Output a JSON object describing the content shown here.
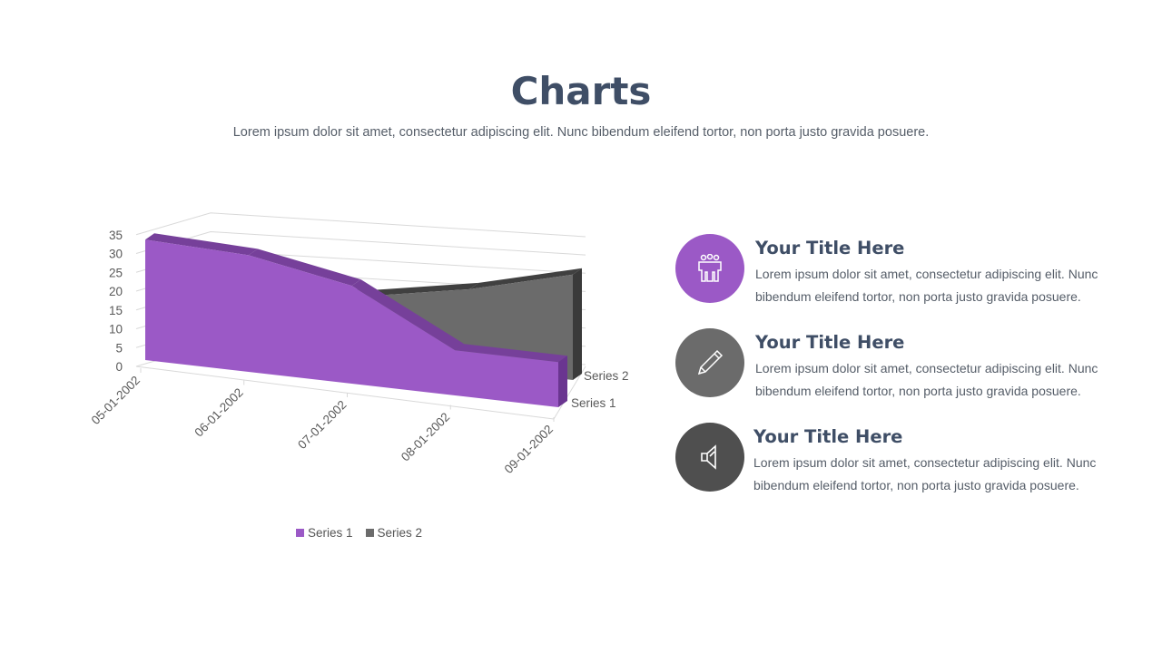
{
  "header": {
    "title": "Charts",
    "subtitle": "Lorem ipsum dolor sit amet, consectetur adipiscing elit. Nunc bibendum eleifend tortor, non porta justo gravida posuere."
  },
  "chart_data": {
    "type": "area",
    "style": "3d-area",
    "categories": [
      "05-01-2002",
      "06-01-2002",
      "07-01-2002",
      "08-01-2002",
      "09-01-2002"
    ],
    "series": [
      {
        "name": "Series 1",
        "values": [
          32,
          31,
          26,
          12,
          12
        ],
        "color": "#9b59c6"
      },
      {
        "name": "Series 2",
        "values": [
          14,
          14,
          16,
          21,
          28
        ],
        "color": "#6b6b6b"
      }
    ],
    "yticks": [
      "0",
      "5",
      "10",
      "15",
      "20",
      "25",
      "30",
      "35"
    ],
    "ylim": [
      0,
      35
    ],
    "depth_labels": [
      "Series 1",
      "Series 2"
    ],
    "grid": true,
    "legend": "bottom"
  },
  "items": [
    {
      "title": "Your Title Here",
      "text": "Lorem ipsum dolor sit amet, consectetur adipiscing elit. Nunc bibendum eleifend tortor, non porta justo gravida posuere.",
      "icon": "team-icon",
      "color": "#9b59c6"
    },
    {
      "title": "Your Title Here",
      "text": "Lorem ipsum dolor sit amet, consectetur adipiscing elit. Nunc bibendum eleifend tortor, non porta justo gravida posuere.",
      "icon": "pencil-icon",
      "color": "#6b6b6b"
    },
    {
      "title": "Your Title Here",
      "text": "Lorem ipsum dolor sit amet, consectetur adipiscing elit. Nunc bibendum eleifend tortor, non porta justo gravida posuere.",
      "icon": "speaker-icon",
      "color": "#4f4f4f"
    }
  ]
}
